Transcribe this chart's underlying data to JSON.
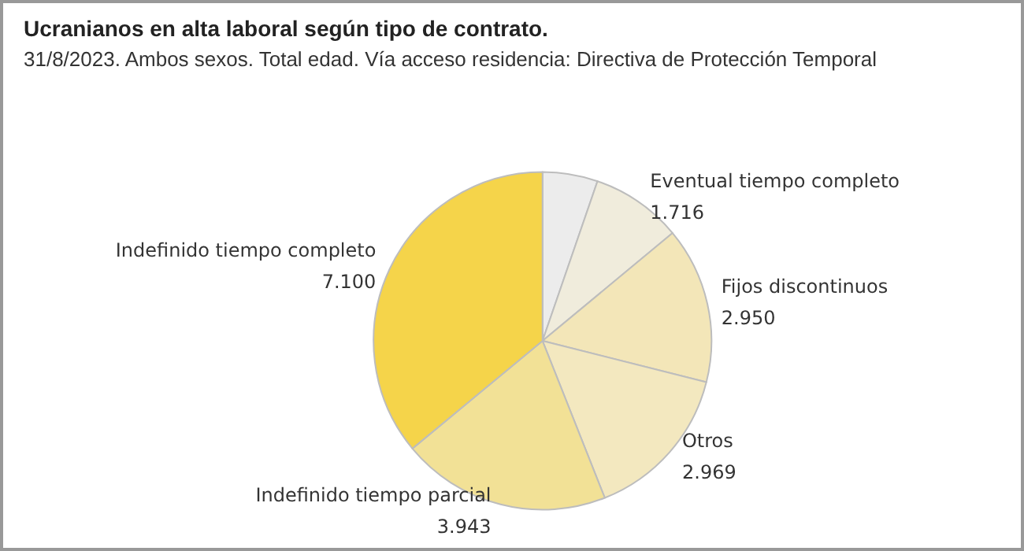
{
  "chart_data": {
    "type": "pie",
    "title": "Ucranianos en alta laboral según tipo de contrato.",
    "subtitle": "31/8/2023. Ambos sexos. Total edad. Vía acceso residencia: Directiva de Protección Temporal",
    "categories": [
      null,
      "Eventual tiempo completo",
      "Fijos discontinuos",
      "Otros",
      "Indefinido tiempo parcial",
      "Indefinido tiempo completo"
    ],
    "values": [
      1040,
      1716,
      2950,
      2969,
      3943,
      7100
    ],
    "value_labels": [
      null,
      "1.716",
      "2.950",
      "2.969",
      "3.943",
      "7.100"
    ],
    "colors": [
      "#ececec",
      "#f0ecdc",
      "#f3e6b8",
      "#f3e8bf",
      "#f2e196",
      "#f5d44a"
    ],
    "legend": false
  }
}
